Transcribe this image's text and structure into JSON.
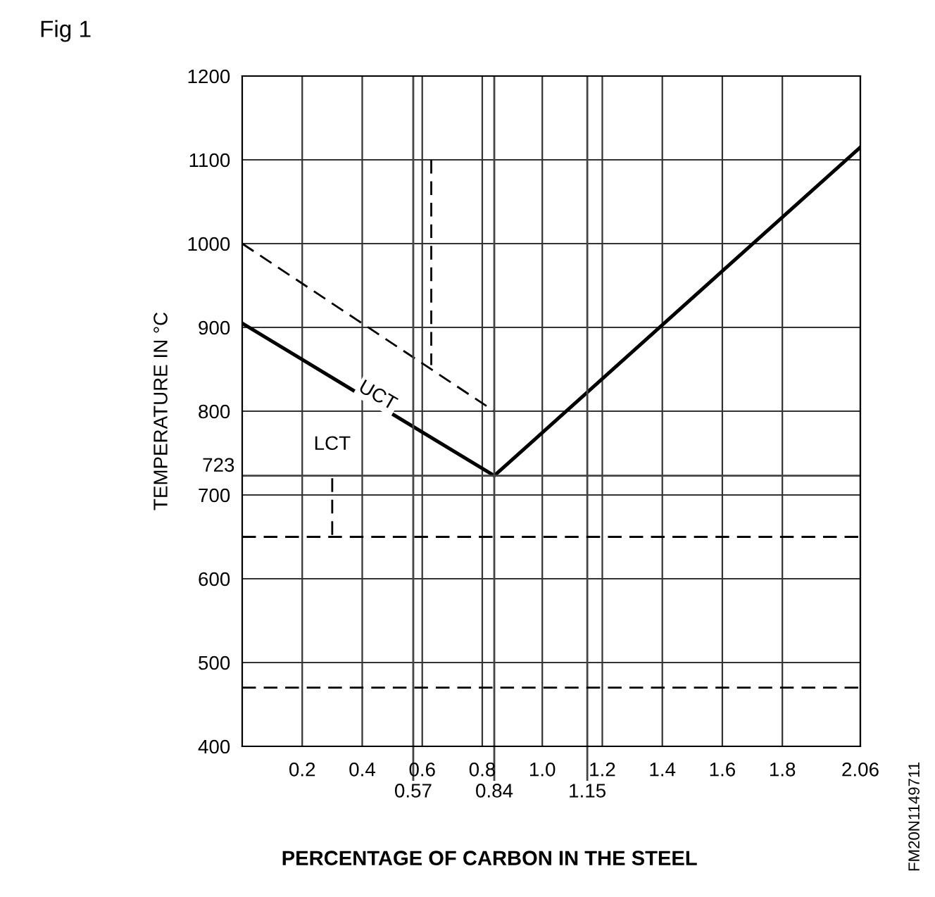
{
  "chart_data": {
    "type": "line",
    "title": "Fig 1",
    "xlabel": "PERCENTAGE OF CARBON IN THE STEEL",
    "ylabel": "TEMPERATURE IN °C",
    "xlim": [
      0,
      2.06
    ],
    "ylim": [
      400,
      1200
    ],
    "xticks": [
      0.2,
      0.4,
      0.6,
      0.8,
      {
        "value": 1.0,
        "label": "1.0"
      },
      1.2,
      1.4,
      1.6,
      1.8,
      2.06
    ],
    "yticks": [
      400,
      500,
      600,
      700,
      800,
      900,
      1000,
      1100,
      1200
    ],
    "grid": true,
    "legend": false,
    "series": [
      {
        "color": "#000000",
        "x": [
          0,
          0.84,
          2.06
        ],
        "values": [
          905,
          723,
          1115
        ],
        "line_style": "solid"
      },
      {
        "color": "#000000",
        "x": [
          0,
          0.84
        ],
        "values": [
          1000,
          800
        ],
        "line_style": "dashed"
      },
      {
        "color": "#000000",
        "x": [
          0.63,
          0.63
        ],
        "values": [
          1100,
          855
        ],
        "line_style": "dashed"
      },
      {
        "color": "#000000",
        "x": [
          0.3,
          0.3
        ],
        "values": [
          720,
          650
        ],
        "line_style": "dashed"
      }
    ],
    "ref_lines": [
      {
        "axis": "x",
        "value": 0.57,
        "label": "0.57",
        "color": "#444444"
      },
      {
        "axis": "x",
        "value": 0.84,
        "label": "0.84",
        "color": "#444444"
      },
      {
        "axis": "x",
        "value": 1.15,
        "label": "1.15",
        "color": "#444444"
      },
      {
        "axis": "y",
        "value": 723,
        "label": "723",
        "color": "#444444"
      },
      {
        "axis": "y",
        "value": 650,
        "line_style": "dashed",
        "color": "#000000"
      },
      {
        "axis": "y",
        "value": 470,
        "line_style": "dashed",
        "color": "#000000"
      }
    ],
    "annotations": [
      {
        "text": "UCT",
        "x": 0.45,
        "y": 818
      },
      {
        "text": "LCT",
        "x": 0.3,
        "y": 760
      },
      "FM20N1149711"
    ]
  }
}
